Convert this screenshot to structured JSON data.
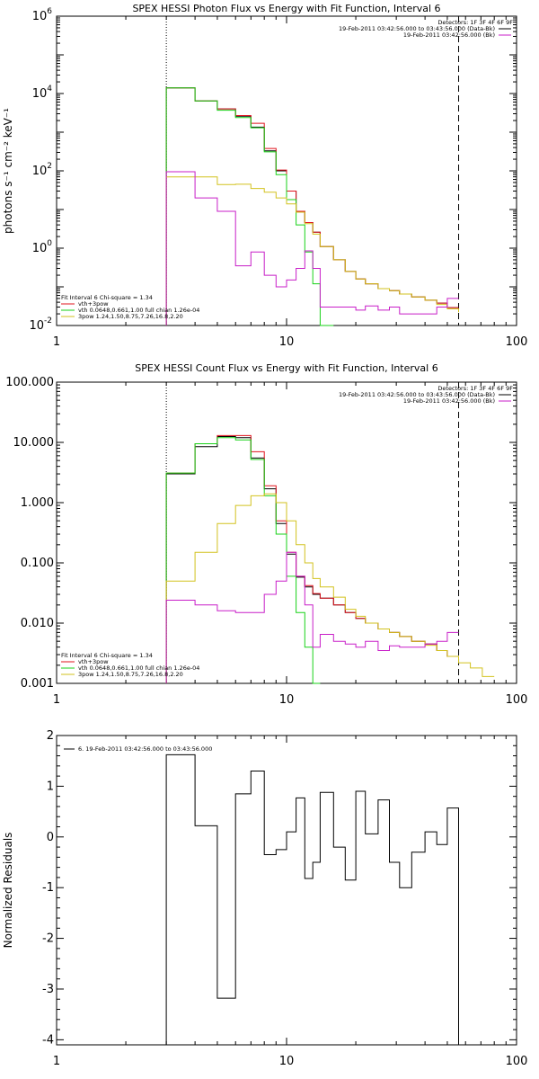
{
  "colors": {
    "black": "#000000",
    "red": "#e0141e",
    "green": "#19d219",
    "yellow": "#d2c21e",
    "magenta": "#c81ec8"
  },
  "chart_data": [
    {
      "type": "line",
      "title": "SPEX HESSI Photon Flux vs Energy with Fit Function, Interval 6",
      "xlabel": "",
      "ylabel": "photons s⁻¹ cm⁻² keV⁻¹",
      "xscale": "log",
      "yscale": "log",
      "xlim": [
        1,
        100
      ],
      "ylim": [
        0.01,
        1000000
      ],
      "x_ticks": [
        1,
        10,
        100
      ],
      "x_tick_labels": [
        "1",
        "10",
        "100"
      ],
      "y_ticks": [
        0.01,
        1,
        100,
        10000,
        1000000
      ],
      "y_tick_label_parts": [
        [
          "10",
          "-2"
        ],
        [
          "10",
          "0"
        ],
        [
          "10",
          "2"
        ],
        [
          "10",
          "4"
        ],
        [
          "10",
          "6"
        ]
      ],
      "vlines": [
        {
          "x": 3,
          "style": "dotted"
        },
        {
          "x": 56,
          "style": "dashed"
        }
      ],
      "legend_top": [
        "Detectors: 1F 3F 4F 6F 9F",
        "19-Feb-2011 03:42:56.000 to 03:43:56.000 (Data-Bk)",
        "19-Feb-2011 03:42:56.000 (Bk)"
      ],
      "legend_top_colors": [
        "",
        "black",
        "magenta"
      ],
      "legend_bottom_title": "Fit Interval  6    Chi-square = 1.34",
      "legend_bottom": [
        "vth+3pow",
        "vth 0.0648,0.661,1.00  full chian 1.26e-04",
        "3pow 1.24,1.50,8.75,7.26,16.8,2.20"
      ],
      "legend_bottom_colors": [
        "red",
        "green",
        "yellow"
      ],
      "edges": [
        3,
        4,
        5,
        6,
        7,
        8,
        9,
        10,
        11,
        12,
        13,
        14,
        16,
        18,
        20,
        22,
        25,
        28,
        31,
        35,
        40,
        45,
        50,
        56
      ],
      "series": [
        {
          "color": "black",
          "values": [
            14000,
            6400,
            4000,
            2600,
            1350,
            330,
            100,
            30,
            9,
            4.6,
            2.6,
            1.1,
            0.5,
            0.25,
            0.16,
            0.12,
            0.09,
            0.08,
            0.065,
            0.055,
            0.045,
            0.038,
            0.029
          ]
        },
        {
          "color": "red",
          "values": [
            14000,
            6400,
            4000,
            2700,
            1700,
            380,
            105,
            30,
            9,
            4.6,
            2.6,
            1.1,
            0.5,
            0.25,
            0.16,
            0.12,
            0.09,
            0.08,
            0.065,
            0.055,
            0.045,
            0.038,
            0.029
          ]
        },
        {
          "color": "green",
          "values": [
            14000,
            6400,
            3700,
            2400,
            1300,
            310,
            80,
            18,
            4,
            0.8,
            0.12,
            0.006,
            0,
            0,
            0,
            0,
            0,
            0,
            0,
            0,
            0,
            0,
            0
          ]
        },
        {
          "color": "yellow",
          "values": [
            70,
            70,
            44,
            45,
            35,
            28,
            20,
            14,
            8.5,
            4.3,
            2.3,
            1.1,
            0.5,
            0.25,
            0.16,
            0.12,
            0.09,
            0.08,
            0.065,
            0.055,
            0.045,
            0.035,
            0.027,
            0.022
          ]
        },
        {
          "color": "magenta",
          "values": [
            95,
            20,
            9,
            0.35,
            0.8,
            0.2,
            0.1,
            0.15,
            0.3,
            0.85,
            0.3,
            0.03,
            0.03,
            0.03,
            0.025,
            0.032,
            0.025,
            0.03,
            0.02,
            0.02,
            0.02,
            0.03,
            0.05
          ]
        }
      ]
    },
    {
      "type": "line",
      "title": "SPEX HESSI Count Flux vs Energy with Fit Function, Interval 6",
      "xlabel": "",
      "ylabel": "",
      "xscale": "log",
      "yscale": "log",
      "xlim": [
        1,
        100
      ],
      "ylim": [
        0.001,
        100
      ],
      "x_ticks": [
        1,
        10,
        100
      ],
      "x_tick_labels": [
        "1",
        "10",
        "100"
      ],
      "y_ticks": [
        0.001,
        0.01,
        0.1,
        1,
        10,
        100
      ],
      "y_tick_labels": [
        "0.001",
        "0.010",
        "0.100",
        "1.000",
        "10.000",
        "100.000"
      ],
      "vlines": [
        {
          "x": 3,
          "style": "dotted"
        },
        {
          "x": 56,
          "style": "dashed"
        }
      ],
      "legend_top": [
        "Detectors: 1F 3F 4F 6F 9F",
        "19-Feb-2011 03:42:56.000 to 03:43:56.000 (Data-Bk)",
        "19-Feb-2011 03:42:56.000 (Bk)"
      ],
      "legend_top_colors": [
        "",
        "black",
        "magenta"
      ],
      "legend_bottom_title": "Fit Interval  6    Chi-square = 1.34",
      "legend_bottom": [
        "vth+3pow",
        "vth 0.0648,0.661,1.00  full chian 1.26e-04",
        "3pow 1.24,1.50,8.75,7.26,16.8,2.20"
      ],
      "legend_bottom_colors": [
        "red",
        "green",
        "yellow"
      ],
      "edges": [
        3,
        4,
        5,
        6,
        7,
        8,
        9,
        10,
        11,
        12,
        13,
        14,
        16,
        18,
        20,
        22,
        25,
        28,
        31,
        35,
        40,
        45,
        50,
        56,
        63,
        71,
        80
      ],
      "series": [
        {
          "color": "black",
          "values": [
            3.0,
            8.5,
            12.5,
            12.0,
            5.5,
            1.7,
            0.45,
            0.14,
            0.058,
            0.04,
            0.03,
            0.026,
            0.02,
            0.015,
            0.012,
            0.01,
            0.008,
            0.007,
            0.006,
            0.005,
            0.0045,
            0.0035,
            0.0028
          ]
        },
        {
          "color": "red",
          "values": [
            3.1,
            9.5,
            13.0,
            13.0,
            7.0,
            1.9,
            0.5,
            0.15,
            0.06,
            0.042,
            0.031,
            0.026,
            0.02,
            0.015,
            0.012,
            0.01,
            0.008,
            0.007,
            0.006,
            0.005,
            0.0045,
            0.0035,
            0.0028
          ]
        },
        {
          "color": "green",
          "values": [
            3.1,
            9.5,
            12.0,
            11.0,
            5.2,
            1.3,
            0.3,
            0.06,
            0.015,
            0.004,
            0.001,
            0,
            0,
            0,
            0,
            0,
            0,
            0,
            0,
            0,
            0,
            0,
            0
          ]
        },
        {
          "color": "yellow",
          "values": [
            0.05,
            0.15,
            0.45,
            0.9,
            1.3,
            1.4,
            1.0,
            0.5,
            0.2,
            0.1,
            0.055,
            0.04,
            0.027,
            0.017,
            0.013,
            0.01,
            0.008,
            0.007,
            0.006,
            0.005,
            0.0043,
            0.0035,
            0.0028,
            0.0022,
            0.0018,
            0.0013
          ]
        },
        {
          "color": "magenta",
          "values": [
            0.024,
            0.02,
            0.016,
            0.015,
            0.015,
            0.03,
            0.05,
            0.15,
            0.06,
            0.02,
            0.004,
            0.0065,
            0.005,
            0.0045,
            0.004,
            0.005,
            0.0035,
            0.0042,
            0.004,
            0.004,
            0.0045,
            0.005,
            0.007
          ]
        }
      ]
    },
    {
      "type": "line",
      "title": "",
      "xlabel": "",
      "ylabel": "Normalized Residuals",
      "xscale": "log",
      "yscale": "linear",
      "xlim": [
        1,
        100
      ],
      "ylim": [
        -4.1,
        2.0
      ],
      "x_ticks": [
        1,
        10,
        100
      ],
      "x_tick_labels": [
        "1",
        "10",
        "100"
      ],
      "y_ticks": [
        -4,
        -3,
        -2,
        -1,
        0,
        1,
        2
      ],
      "y_tick_labels": [
        "-4",
        "-3",
        "-2",
        "-1",
        "0",
        "1",
        "2"
      ],
      "legend_top_left": "6. 19-Feb-2011 03:42:56.000 to 03:43:56.000",
      "edges": [
        3,
        4,
        5,
        6,
        7,
        8,
        9,
        10,
        11,
        12,
        13,
        14,
        16,
        18,
        20,
        22,
        25,
        28,
        31,
        35,
        40,
        45,
        50,
        56
      ],
      "series": [
        {
          "color": "black",
          "values": [
            1.62,
            0.22,
            -3.18,
            0.85,
            1.3,
            -0.35,
            -0.25,
            0.1,
            0.77,
            -0.82,
            -0.5,
            0.88,
            -0.2,
            -0.85,
            0.9,
            0.06,
            0.73,
            -0.5,
            -1.0,
            -0.3,
            0.1,
            -0.15,
            0.57
          ]
        }
      ]
    }
  ]
}
